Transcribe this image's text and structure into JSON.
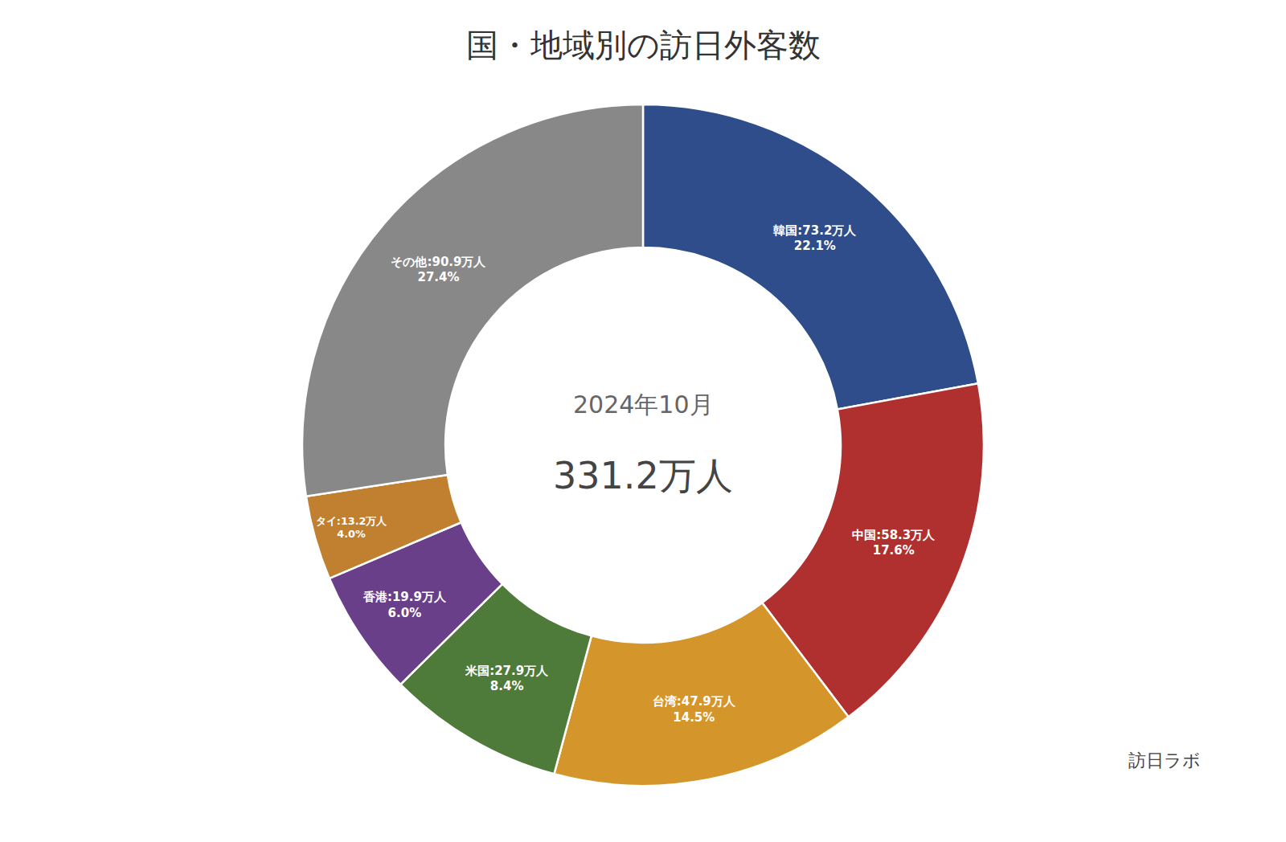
{
  "chart_data": {
    "type": "pie",
    "title": "国・地域別の訪日外客数",
    "values": [
      22.1,
      17.6,
      14.5,
      8.4,
      6.0,
      4.0,
      27.4
    ],
    "value_labels": [
      "韓国:73.2万人\n22.1%",
      "中国:58.3万人\n17.6%",
      "台湾:47.9万人\n14.5%",
      "米国:27.9万人\n8.4%",
      "香港:19.9万人\n6.0%",
      "タイ:13.2万人\n4.0%",
      "その他:90.9万人\n27.4%"
    ],
    "colors": [
      "#2e4d8a",
      "#b03030",
      "#d4952a",
      "#4e7a3a",
      "#6a3f8a",
      "#c08030",
      "#888888"
    ],
    "data_labels": true,
    "annotations": [
      "2024年10月",
      "331.2万人",
      "訪日ラボ"
    ]
  }
}
